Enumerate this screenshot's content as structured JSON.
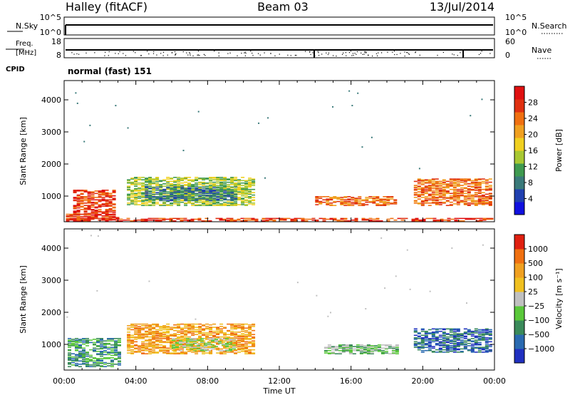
{
  "header": {
    "title": "Halley (fitACF)",
    "beam": "Beam 03",
    "date": "13/Jul/2014"
  },
  "top_panels": {
    "nsky": {
      "label": "N.Sky",
      "right_label": "N.Search",
      "left_ticks": [
        "10^5",
        "10^0"
      ],
      "right_ticks": [
        "10^5",
        "10^0"
      ]
    },
    "freq": {
      "label_line1": "Freq.",
      "label_line2": "[MHz]",
      "left_ticks": [
        "18",
        "8"
      ],
      "right_label": "Nave",
      "right_ticks": [
        "60",
        "0"
      ]
    },
    "cpid": {
      "label": "CPID",
      "text": "normal (fast) 151"
    }
  },
  "chart_data": [
    {
      "type": "heatmap",
      "title": "",
      "xlabel": "Time UT",
      "ylabel": "Slant Range [km]",
      "x_ticks": [
        "00:00",
        "04:00",
        "08:00",
        "12:00",
        "16:00",
        "20:00",
        "00:00"
      ],
      "xlim_hours": [
        0,
        24
      ],
      "y_ticks": [
        1000,
        2000,
        3000,
        4000
      ],
      "ylim": [
        200,
        4600
      ],
      "colorbar": {
        "label": "Power [dB]",
        "ticks": [
          "28",
          "24",
          "20",
          "16",
          "12",
          "8",
          "4"
        ],
        "colors": [
          "#1010e0",
          "#2040b0",
          "#3a7a7a",
          "#3f9a50",
          "#a8c832",
          "#f0d020",
          "#f0a020",
          "#f07010",
          "#e03010",
          "#e01010"
        ]
      },
      "regions": [
        {
          "t0": 0.1,
          "t1": 3.0,
          "r0": 250,
          "r1": 450,
          "level": 1
        },
        {
          "t0": 0.5,
          "t1": 2.8,
          "r0": 400,
          "r1": 1200,
          "level": 1
        },
        {
          "t0": 3.5,
          "t1": 10.5,
          "r0": 700,
          "r1": 1600,
          "level": 5
        },
        {
          "t0": 4.5,
          "t1": 9.5,
          "r0": 850,
          "r1": 1300,
          "level": 7
        },
        {
          "t0": 14.0,
          "t1": 18.5,
          "r0": 700,
          "r1": 1000,
          "level": 2
        },
        {
          "t0": 19.5,
          "t1": 23.8,
          "r0": 700,
          "r1": 1550,
          "level": 2
        },
        {
          "t0": 0.1,
          "t1": 23.8,
          "r0": 220,
          "r1": 320,
          "level": 1
        }
      ]
    },
    {
      "type": "heatmap",
      "title": "",
      "xlabel": "Time UT",
      "ylabel": "Slant Range [km]",
      "x_ticks": [
        "00:00",
        "04:00",
        "08:00",
        "12:00",
        "16:00",
        "20:00",
        "00:00"
      ],
      "xlim_hours": [
        0,
        24
      ],
      "y_ticks": [
        1000,
        2000,
        3000,
        4000
      ],
      "ylim": [
        200,
        4600
      ],
      "colorbar": {
        "label": "Velocity [m s⁻¹]",
        "ticks": [
          "1000",
          "500",
          "100",
          "25",
          "−25",
          "−100",
          "−500",
          "−1000"
        ],
        "colors": [
          "#2030c0",
          "#2a6ab0",
          "#3a8a5a",
          "#5ac83a",
          "#c0c0c0",
          "#f0c020",
          "#f0a020",
          "#f07010",
          "#e02010"
        ]
      },
      "regions": [
        {
          "t0": 0.2,
          "t1": 3.0,
          "r0": 300,
          "r1": 1200,
          "level": 6
        },
        {
          "t0": 3.5,
          "t1": 10.5,
          "r0": 700,
          "r1": 1650,
          "level": 2
        },
        {
          "t0": 6.0,
          "t1": 9.5,
          "r0": 800,
          "r1": 1200,
          "level": 4
        },
        {
          "t0": 14.5,
          "t1": 18.5,
          "r0": 700,
          "r1": 1000,
          "level": 5
        },
        {
          "t0": 19.5,
          "t1": 23.8,
          "r0": 750,
          "r1": 1500,
          "level": 7
        }
      ]
    }
  ]
}
